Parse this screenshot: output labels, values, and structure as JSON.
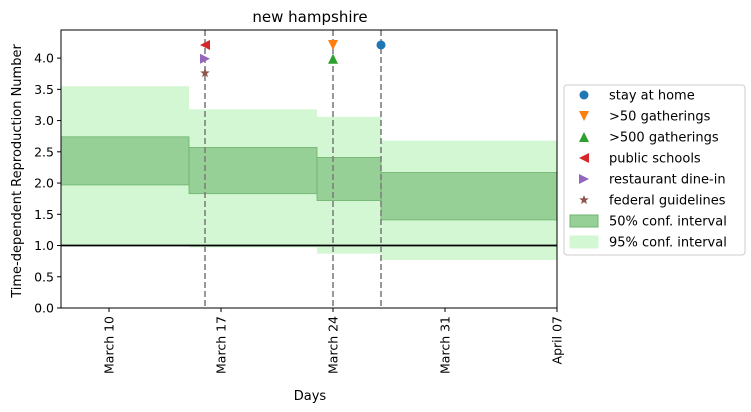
{
  "chart_data": {
    "type": "line",
    "title": "new hampshire",
    "xlabel": "Days",
    "ylabel": "Time-dependent Reproduction Number",
    "x_range": [
      "2020-03-07",
      "2020-04-07"
    ],
    "ylim": [
      0,
      4.45
    ],
    "x_ticks": [
      {
        "date": "2020-03-10",
        "label": "March 10"
      },
      {
        "date": "2020-03-17",
        "label": "March 17"
      },
      {
        "date": "2020-03-24",
        "label": "March 24"
      },
      {
        "date": "2020-03-31",
        "label": "March 31"
      },
      {
        "date": "2020-04-07",
        "label": "April 07"
      }
    ],
    "y_ticks": [
      "0.0",
      "0.5",
      "1.0",
      "1.5",
      "2.0",
      "2.5",
      "3.0",
      "3.5",
      "4.0"
    ],
    "grid": false,
    "legend_position": "right, outside the plot",
    "reference_line": {
      "y": 1.0,
      "color": "#000000"
    },
    "intervention_lines": [
      "2020-03-16",
      "2020-03-24",
      "2020-03-27"
    ],
    "segments": [
      {
        "start": "2020-03-07",
        "end": "2020-03-15",
        "ci50": [
          1.97,
          2.74
        ],
        "ci95": [
          1.0,
          3.55
        ]
      },
      {
        "start": "2020-03-15",
        "end": "2020-03-23",
        "ci50": [
          1.83,
          2.57
        ],
        "ci95": [
          0.97,
          3.18
        ]
      },
      {
        "start": "2020-03-23",
        "end": "2020-03-27",
        "ci50": [
          1.72,
          2.41
        ],
        "ci95": [
          0.87,
          3.06
        ]
      },
      {
        "start": "2020-03-27",
        "end": "2020-04-07",
        "ci50": [
          1.41,
          2.17
        ],
        "ci95": [
          0.77,
          2.68
        ]
      }
    ],
    "events": [
      {
        "name": "stay at home",
        "date": "2020-03-27",
        "y": 4.21,
        "marker": "circle",
        "color": "#1f77b4"
      },
      {
        "name": ">50 gatherings",
        "date": "2020-03-24",
        "y": 4.21,
        "marker": "triangle-down",
        "color": "#ff7f0e"
      },
      {
        "name": ">500 gatherings",
        "date": "2020-03-24",
        "y": 3.99,
        "marker": "triangle-up",
        "color": "#2ca02c"
      },
      {
        "name": "public schools",
        "date": "2020-03-16",
        "y": 4.21,
        "marker": "triangle-left",
        "color": "#d62728"
      },
      {
        "name": "restaurant dine-in",
        "date": "2020-03-16",
        "y": 3.99,
        "marker": "triangle-right",
        "color": "#9467bd"
      },
      {
        "name": "federal guidelines",
        "date": "2020-03-16",
        "y": 3.76,
        "marker": "star",
        "color": "#8c564b"
      }
    ],
    "legend": [
      {
        "label": "stay at home",
        "kind": "marker",
        "marker": "circle",
        "color": "#1f77b4"
      },
      {
        "label": ">50 gatherings",
        "kind": "marker",
        "marker": "triangle-down",
        "color": "#ff7f0e"
      },
      {
        "label": ">500 gatherings",
        "kind": "marker",
        "marker": "triangle-up",
        "color": "#2ca02c"
      },
      {
        "label": "public schools",
        "kind": "marker",
        "marker": "triangle-left",
        "color": "#d62728"
      },
      {
        "label": "restaurant dine-in",
        "kind": "marker",
        "marker": "triangle-right",
        "color": "#9467bd"
      },
      {
        "label": "federal guidelines",
        "kind": "marker",
        "marker": "star",
        "color": "#8c564b"
      },
      {
        "label": "50% conf. interval",
        "kind": "patch",
        "color": "#96d096",
        "edge": "#6fb36f"
      },
      {
        "label": "95% conf. interval",
        "kind": "patch",
        "color": "#d2f7d2",
        "edge": "#d2f7d2"
      }
    ],
    "colors": {
      "ci95": "#d2f7d2",
      "ci50": "#96d096",
      "ci50_edge": "#6fb36f",
      "intervention_line": "#7f7f7f"
    }
  }
}
